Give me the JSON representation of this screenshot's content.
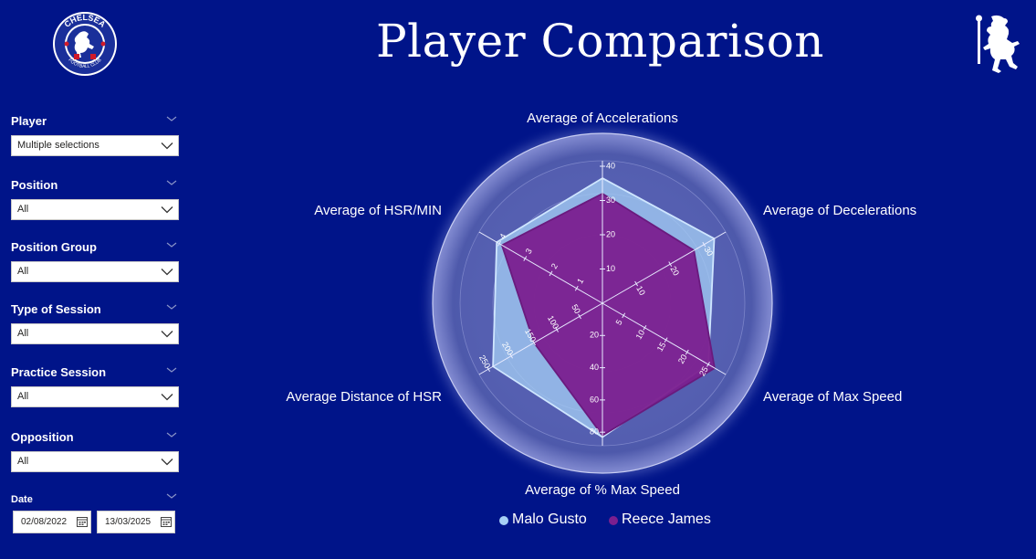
{
  "header": {
    "title": "Player Comparison",
    "crest_top": "CHELSEA",
    "crest_bottom": "FOOTBALL CLUB"
  },
  "filters": [
    {
      "label": "Player",
      "value": "Multiple selections"
    },
    {
      "label": "Position",
      "value": "All"
    },
    {
      "label": "Position Group",
      "value": "All"
    },
    {
      "label": "Type of Session",
      "value": "All"
    },
    {
      "label": "Practice Session",
      "value": "All"
    },
    {
      "label": "Opposition",
      "value": "All"
    }
  ],
  "date_filter": {
    "label": "Date",
    "start": "02/08/2022",
    "end": "13/03/2025"
  },
  "colors": {
    "background": "#001489",
    "malo_gusto": "#a6cff5",
    "reece_james": "#7b1f8f"
  },
  "chart_data": {
    "type": "radar",
    "axes": [
      {
        "label": "Average of Accelerations",
        "max": 40,
        "ticks": [
          "10",
          "20",
          "30",
          "40"
        ]
      },
      {
        "label": "Average of Decelerations",
        "max": 35,
        "ticks": [
          "10",
          "20",
          "30"
        ]
      },
      {
        "label": "Average of Max Speed",
        "max": 28,
        "ticks": [
          "5",
          "10",
          "15",
          "20",
          "25"
        ]
      },
      {
        "label": "Average of % Max Speed",
        "max": 85,
        "ticks": [
          "20",
          "40",
          "60",
          "80"
        ]
      },
      {
        "label": "Average Distance of HSR",
        "max": 260,
        "ticks": [
          "50",
          "100",
          "150",
          "200",
          "250"
        ]
      },
      {
        "label": "Average of HSR/MIN",
        "max": 4.6,
        "ticks": [
          "1",
          "2",
          "3",
          "4"
        ]
      }
    ],
    "series": [
      {
        "name": "Malo Gusto",
        "values": [
          36.5,
          33,
          25,
          83,
          240,
          4.1
        ]
      },
      {
        "name": "Reece James",
        "values": [
          32,
          27,
          26.5,
          82,
          150,
          3.9
        ]
      }
    ],
    "legend_position": "bottom"
  }
}
